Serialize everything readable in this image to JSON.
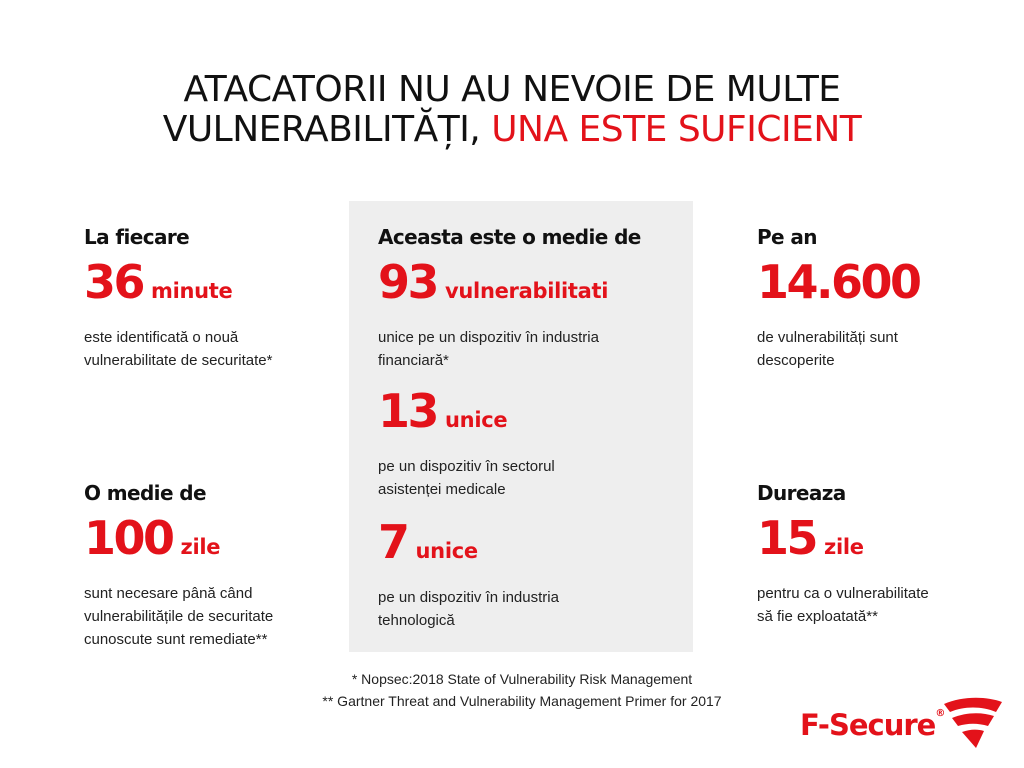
{
  "headline": {
    "line1": "ATACATORII NU AU NEVOIE DE MULTE",
    "line2_start": "VULNERABILITĂȚI,",
    "line2_accent": "UNA ESTE SUFICIENT"
  },
  "stats": {
    "left_top": {
      "label": "La fiecare",
      "number": "36",
      "unit": "minute",
      "desc": [
        "este identificată o nouă",
        "vulnerabilitate de securitate*"
      ]
    },
    "left_bottom": {
      "label": "O medie de",
      "number": "100",
      "unit": "zile",
      "desc": [
        "sunt necesare până când",
        "vulnerabilitățile de securitate",
        "cunoscute sunt remediate**"
      ]
    },
    "center_1": {
      "label": "Aceasta este o medie de",
      "number": "93",
      "unit": "vulnerabilitati",
      "desc": [
        "unice pe un dispozitiv în industria",
        "financiară*"
      ]
    },
    "center_2": {
      "number": "13",
      "unit": "unice",
      "desc": [
        "pe un dispozitiv în sectorul",
        "asistenței medicale"
      ]
    },
    "center_3": {
      "number": "7",
      "unit": "unice",
      "desc": [
        "pe un dispozitiv în industria",
        "tehnologică"
      ]
    },
    "right_top": {
      "label": "Pe an",
      "number": "14.600",
      "desc": [
        "de vulnerabilități sunt",
        "descoperite"
      ]
    },
    "right_bottom": {
      "label": "Dureaza",
      "number": "15",
      "unit": "zile",
      "desc": [
        "pentru ca o vulnerabilitate",
        "să fie exploatată**"
      ]
    }
  },
  "footnotes": [
    "* Nopsec:2018 State of Vulnerability Risk Management",
    "** Gartner Threat and Vulnerability Management Primer for 2017"
  ],
  "logo": {
    "text": "F-Secure",
    "registered": "®",
    "icon": "f-secure-shield-icon"
  },
  "colors": {
    "accent": "#e3121a",
    "panel": "#eeeeee",
    "text": "#111111"
  }
}
